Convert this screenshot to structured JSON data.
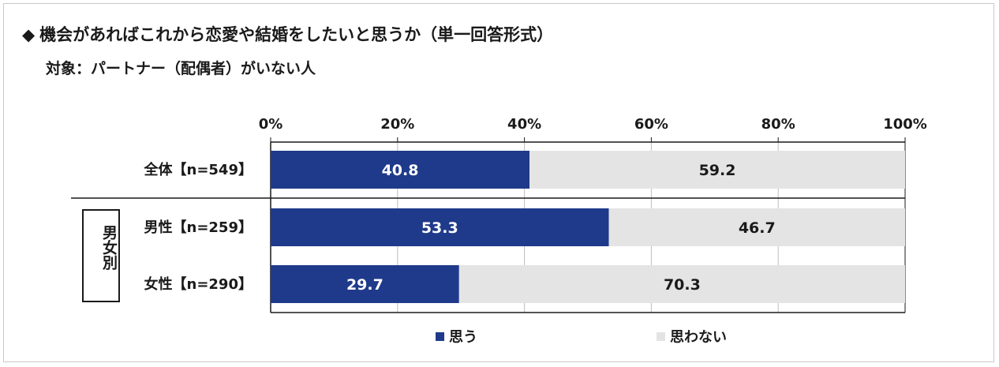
{
  "title": "機会があればこれから恋愛や結婚をしたいと思うか（単一回答形式）",
  "title_bullet": "◆",
  "subtitle": "対象：パートナー（配偶者）がいない人",
  "group_label": "男女別",
  "colors": {
    "series1": "#1f3a8a",
    "series2": "#e4e4e4",
    "axis": "#1a1a1a",
    "grid": "#bdbdbd"
  },
  "chart_data": {
    "type": "bar",
    "orientation": "horizontal",
    "stacked": true,
    "percent": true,
    "x_ticks": [
      "0%",
      "20%",
      "40%",
      "60%",
      "80%",
      "100%"
    ],
    "xlim": [
      0,
      100
    ],
    "categories": [
      "全体【n=549】",
      "男性【n=259】",
      "女性【n=290】"
    ],
    "series": [
      {
        "name": "思う",
        "values": [
          40.8,
          53.3,
          29.7
        ],
        "labels": [
          "40.8",
          "53.3",
          "29.7"
        ]
      },
      {
        "name": "思わない",
        "values": [
          59.2,
          46.7,
          70.3
        ],
        "labels": [
          "59.2",
          "46.7",
          "70.3"
        ]
      }
    ],
    "legend_position": "bottom",
    "grid": true
  }
}
